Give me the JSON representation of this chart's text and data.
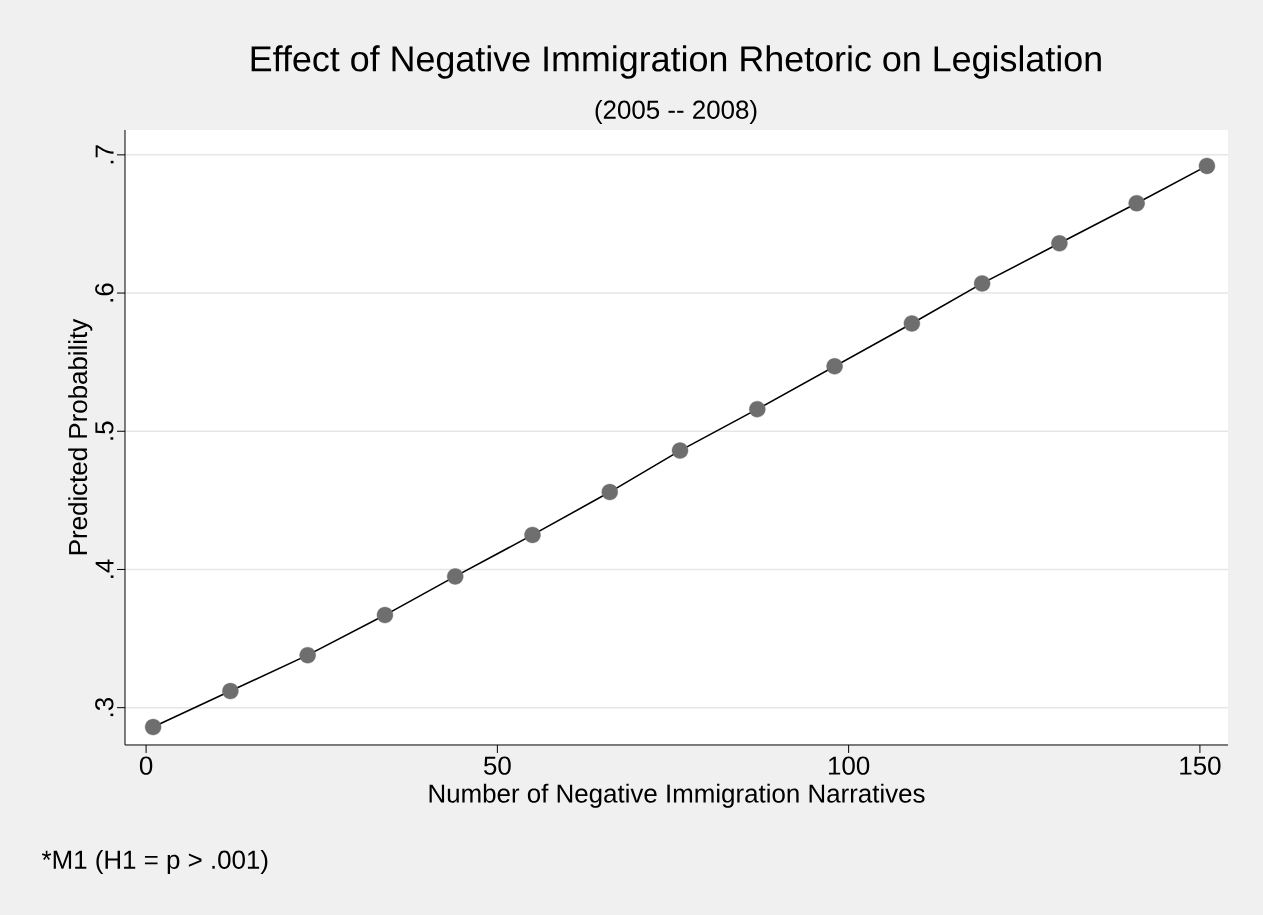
{
  "chart_data": {
    "type": "line",
    "title": "Effect of Negative Immigration Rhetoric on Legislation",
    "subtitle": "(2005 -- 2008)",
    "xlabel": "Number of Negative Immigration Narratives",
    "ylabel": "Predicted Probability",
    "annotations": [
      "*M1 (H1 = p > .001)"
    ],
    "series": [
      {
        "color": "#000000",
        "x": [
          1,
          12,
          23,
          34,
          44,
          55,
          66,
          76,
          87,
          98,
          109,
          119,
          130,
          141,
          151
        ],
        "values": [
          0.286,
          0.312,
          0.338,
          0.367,
          0.395,
          0.425,
          0.456,
          0.486,
          0.516,
          0.547,
          0.578,
          0.607,
          0.636,
          0.665,
          0.692
        ]
      },
      {
        "type": "scatter",
        "color": "#6e6e6e",
        "marker": "circle",
        "x": [
          1,
          12,
          23,
          34,
          44,
          55,
          66,
          76,
          87,
          98,
          109,
          119,
          130,
          141,
          151
        ],
        "values": [
          0.286,
          0.312,
          0.338,
          0.367,
          0.395,
          0.425,
          0.456,
          0.486,
          0.516,
          0.547,
          0.578,
          0.607,
          0.636,
          0.665,
          0.692
        ]
      }
    ],
    "xlim": [
      -3,
      154
    ],
    "ylim": [
      0.273,
      0.718
    ],
    "xticks": [
      0,
      50,
      100,
      150
    ],
    "yticks": [
      {
        "value": 0.3,
        "label": ".3"
      },
      {
        "value": 0.4,
        "label": ".4"
      },
      {
        "value": 0.5,
        "label": ".5"
      },
      {
        "value": 0.6,
        "label": ".6"
      },
      {
        "value": 0.7,
        "label": ".7"
      }
    ],
    "grid": "y"
  }
}
